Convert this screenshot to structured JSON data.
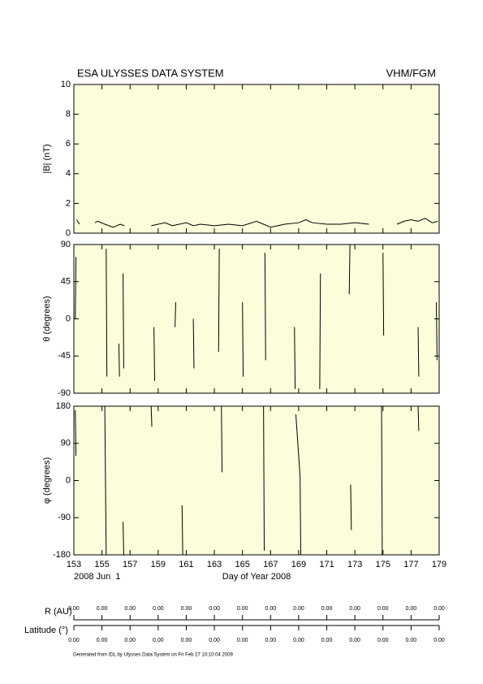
{
  "header": {
    "title": "ESA ULYSSES DATA SYSTEM",
    "instrument": "VHM/FGM"
  },
  "chart_data": [
    {
      "type": "line",
      "ylabel": "|B| (nT)",
      "color": "#000000",
      "background": "#fdfddc",
      "xlim": [
        153,
        179
      ],
      "xticks": [
        153,
        155,
        157,
        159,
        161,
        163,
        165,
        167,
        169,
        171,
        173,
        175,
        177,
        179
      ],
      "xtick_labels": false,
      "ylim": [
        0,
        10
      ],
      "yticks": [
        0,
        2,
        4,
        6,
        8,
        10
      ],
      "x": [
        153.2,
        153.4,
        153.6,
        154.5,
        154.7,
        155.2,
        155.5,
        155.8,
        156.3,
        156.6,
        157.0,
        158.5,
        159.0,
        159.5,
        160.0,
        160.5,
        161.0,
        161.5,
        162.0,
        163.0,
        164.0,
        165.0,
        166.0,
        166.5,
        167.0,
        167.5,
        168.0,
        169.0,
        169.5,
        170.0,
        171.0,
        172.0,
        173.0,
        174.0,
        175.0,
        176.0,
        176.5,
        177.0,
        177.5,
        178.0,
        178.5,
        178.9
      ],
      "values": [
        0.9,
        0.6,
        null,
        0.7,
        0.8,
        0.6,
        0.5,
        0.4,
        0.6,
        0.5,
        null,
        0.5,
        0.6,
        0.7,
        0.5,
        0.6,
        0.7,
        0.5,
        0.6,
        0.5,
        0.6,
        0.5,
        0.8,
        0.6,
        0.4,
        0.5,
        0.6,
        0.7,
        0.9,
        0.7,
        0.6,
        0.6,
        0.7,
        0.6,
        null,
        0.6,
        0.8,
        0.9,
        0.8,
        1.0,
        0.7,
        0.8
      ]
    },
    {
      "type": "line",
      "ylabel": "θ (degrees)",
      "color": "#000000",
      "background": "#fdfddc",
      "xlim": [
        153,
        179
      ],
      "xticks": [
        153,
        155,
        157,
        159,
        161,
        163,
        165,
        167,
        169,
        171,
        173,
        175,
        177,
        179
      ],
      "xtick_labels": false,
      "ylim": [
        -90,
        90
      ],
      "yticks": [
        -90,
        -45,
        0,
        45,
        90
      ],
      "x": [
        153.1,
        153.15,
        153.15,
        155.3,
        155.35,
        155.35,
        156.2,
        156.25,
        156.25,
        156.5,
        156.55,
        156.55,
        158.7,
        158.75,
        158.75,
        160.2,
        160.25,
        160.25,
        161.5,
        161.55,
        161.55,
        163.3,
        163.35,
        163.35,
        165.0,
        165.05,
        165.05,
        166.6,
        166.65,
        166.65,
        168.7,
        168.75,
        168.75,
        170.5,
        170.55,
        170.55,
        172.6,
        172.65,
        172.65,
        175.0,
        175.05,
        175.05,
        177.5,
        177.55,
        177.55,
        178.8,
        178.85
      ],
      "values": [
        0,
        75,
        null,
        85,
        -70,
        null,
        -30,
        -70,
        null,
        55,
        -60,
        null,
        -10,
        -75,
        null,
        -10,
        20,
        null,
        0,
        -60,
        null,
        -40,
        85,
        null,
        20,
        -70,
        null,
        80,
        -50,
        null,
        -10,
        -85,
        null,
        -85,
        55,
        null,
        30,
        90,
        null,
        80,
        -20,
        null,
        -10,
        -70,
        null,
        20,
        -50
      ]
    },
    {
      "type": "line",
      "ylabel": "φ (degrees)",
      "color": "#000000",
      "background": "#fdfddc",
      "xlim": [
        153,
        179
      ],
      "xticks": [
        153,
        155,
        157,
        159,
        161,
        163,
        165,
        167,
        169,
        171,
        173,
        175,
        177,
        179
      ],
      "xtick_labels": true,
      "xlabel": "Day of Year 2008",
      "annotation": "2008 Jun  1",
      "ylim": [
        -180,
        180
      ],
      "yticks": [
        -180,
        -90,
        0,
        90,
        180
      ],
      "x": [
        153.1,
        153.15,
        153.15,
        155.2,
        155.3,
        155.3,
        156.5,
        156.55,
        156.55,
        158.5,
        158.55,
        158.55,
        160.7,
        160.75,
        160.75,
        163.5,
        163.55,
        163.55,
        166.5,
        166.55,
        166.55,
        168.8,
        169.1,
        169.15,
        169.15,
        172.7,
        172.75,
        172.75,
        174.9,
        174.95,
        174.95,
        177.5,
        177.55
      ],
      "values": [
        170,
        60,
        null,
        180,
        -180,
        null,
        -100,
        -180,
        null,
        180,
        130,
        null,
        -60,
        -180,
        null,
        180,
        20,
        null,
        180,
        -170,
        null,
        160,
        10,
        -180,
        null,
        -10,
        -120,
        null,
        180,
        -180,
        null,
        180,
        120
      ]
    }
  ],
  "ephemeris": [
    {
      "label": "R (AU)",
      "values": [
        "0.00",
        "0.00",
        "0.00",
        "0.00",
        "0.00",
        "0.00",
        "0.00",
        "0.00",
        "0.00",
        "0.00",
        "0.00",
        "0.00",
        "0.00",
        "0.00"
      ]
    },
    {
      "label": "Latitude (°)",
      "values": [
        "0.00",
        "0.00",
        "0.00",
        "0.00",
        "0.00",
        "0.00",
        "0.00",
        "0.00",
        "0.00",
        "0.00",
        "0.00",
        "0.00",
        "0.00",
        "0.00"
      ]
    }
  ],
  "footer": "Generated from IDL by Ulysses Data System on Fri Feb 27 10:10:04 2009"
}
